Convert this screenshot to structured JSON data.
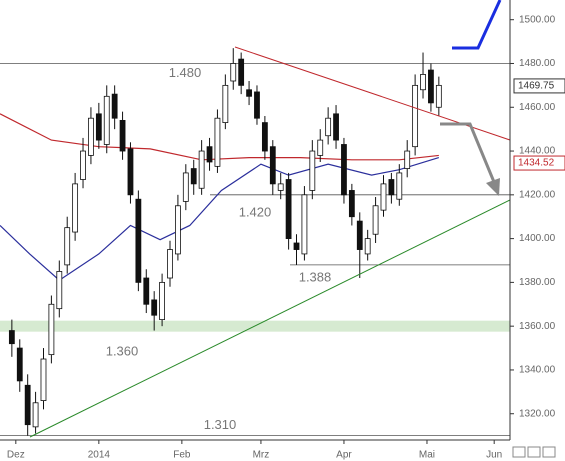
{
  "chart_data": {
    "type": "candlestick",
    "x": [
      0,
      2,
      4,
      6,
      8,
      10,
      12,
      14,
      16,
      18,
      20,
      22,
      24,
      26,
      28,
      30,
      32,
      34,
      36,
      38,
      40,
      42,
      44,
      46,
      48,
      50,
      52,
      54,
      56,
      58,
      60,
      62,
      64,
      66,
      68,
      70,
      72,
      74,
      76,
      78,
      80,
      82,
      84,
      86,
      88,
      90,
      92,
      94,
      96,
      98,
      100,
      102,
      104,
      106,
      108
    ],
    "open": [
      1358,
      1350,
      1333,
      1314,
      1326,
      1347,
      1368,
      1388,
      1403,
      1427,
      1438,
      1457,
      1443,
      1466,
      1454,
      1441,
      1418,
      1382,
      1372,
      1363,
      1382,
      1393,
      1417,
      1432,
      1423,
      1442,
      1433,
      1453,
      1472,
      1482,
      1468,
      1467,
      1453,
      1442,
      1422,
      1427,
      1398,
      1393,
      1422,
      1438,
      1447,
      1457,
      1443,
      1422,
      1408,
      1393,
      1402,
      1413,
      1427,
      1418,
      1432,
      1442,
      1468,
      1477,
      1460
    ],
    "high": [
      1363,
      1354,
      1338,
      1330,
      1350,
      1374,
      1390,
      1410,
      1430,
      1446,
      1460,
      1462,
      1470,
      1470,
      1458,
      1444,
      1422,
      1386,
      1376,
      1384,
      1399,
      1420,
      1434,
      1436,
      1445,
      1446,
      1459,
      1475,
      1487,
      1485,
      1472,
      1470,
      1456,
      1445,
      1430,
      1430,
      1402,
      1424,
      1445,
      1450,
      1460,
      1461,
      1446,
      1425,
      1412,
      1404,
      1419,
      1429,
      1430,
      1434,
      1445,
      1475,
      1485,
      1480,
      1474
    ],
    "low": [
      1346,
      1330,
      1310,
      1311,
      1322,
      1343,
      1364,
      1384,
      1399,
      1423,
      1434,
      1441,
      1439,
      1450,
      1436,
      1416,
      1376,
      1366,
      1358,
      1360,
      1378,
      1390,
      1413,
      1420,
      1420,
      1431,
      1430,
      1450,
      1468,
      1466,
      1461,
      1452,
      1436,
      1420,
      1418,
      1395,
      1388,
      1390,
      1418,
      1435,
      1443,
      1441,
      1416,
      1406,
      1382,
      1390,
      1398,
      1410,
      1416,
      1415,
      1428,
      1438,
      1464,
      1458,
      1456
    ],
    "close": [
      1352,
      1335,
      1315,
      1325,
      1345,
      1370,
      1385,
      1405,
      1425,
      1440,
      1455,
      1445,
      1465,
      1455,
      1440,
      1420,
      1380,
      1370,
      1365,
      1380,
      1395,
      1415,
      1430,
      1425,
      1440,
      1435,
      1455,
      1470,
      1480,
      1470,
      1465,
      1455,
      1440,
      1425,
      1425,
      1400,
      1395,
      1420,
      1440,
      1445,
      1455,
      1445,
      1420,
      1410,
      1395,
      1400,
      1415,
      1425,
      1420,
      1430,
      1440,
      1470,
      1475,
      1462,
      1470
    ],
    "overlays": [
      {
        "color": "#c0282d",
        "x": [
          -3,
          10,
          22,
          35,
          48,
          60,
          73,
          86,
          98,
          108
        ],
        "values": [
          1457,
          1445,
          1442,
          1441,
          1436,
          1437,
          1437,
          1436,
          1436,
          1438
        ]
      },
      {
        "color": "#2b2f9c",
        "x": [
          -3,
          4.5,
          12,
          22,
          30,
          37.5,
          45,
          53,
          63,
          70,
          80,
          91,
          98,
          108
        ],
        "values": [
          1406,
          1393,
          1381,
          1393,
          1406,
          1399.5,
          1406,
          1422,
          1434,
          1429,
          1434,
          1429,
          1431.5,
          1437
        ]
      }
    ],
    "levels": [
      {
        "value": 1480,
        "label": "1.480"
      },
      {
        "value": 1420,
        "label": "1.420"
      },
      {
        "value": 1388,
        "label": "1.388"
      },
      {
        "value": 1360,
        "label": "1.360"
      },
      {
        "value": 1310,
        "label": "1.310"
      }
    ],
    "price_labels": [
      {
        "value": 1469.75,
        "label": "1469.75",
        "color": "#333333"
      },
      {
        "value": 1434.52,
        "label": "1434.52",
        "color": "#c0282d"
      }
    ],
    "xlim": [
      -3,
      126
    ],
    "ylim": [
      1308,
      1509
    ],
    "xticks": [
      {
        "value": 1,
        "label": "Dez"
      },
      {
        "value": 22,
        "label": "2014"
      },
      {
        "value": 43,
        "label": "Feb"
      },
      {
        "value": 63,
        "label": "Mrz"
      },
      {
        "value": 84,
        "label": "Apr"
      },
      {
        "value": 105,
        "label": "Mai"
      },
      {
        "value": 122,
        "label": "Jun"
      }
    ],
    "yticks": [
      {
        "value": 1320,
        "label": "1320.00"
      },
      {
        "value": 1340,
        "label": "1340.00"
      },
      {
        "value": 1360,
        "label": "1360.00"
      },
      {
        "value": 1380,
        "label": "1380.00"
      },
      {
        "value": 1400,
        "label": "1400.00"
      },
      {
        "value": 1420,
        "label": "1420.00"
      },
      {
        "value": 1440,
        "label": "1440.00"
      },
      {
        "value": 1460,
        "label": "1460.00"
      },
      {
        "value": 1480,
        "label": "1480.00"
      },
      {
        "value": 1500,
        "label": "1500.00"
      }
    ]
  }
}
